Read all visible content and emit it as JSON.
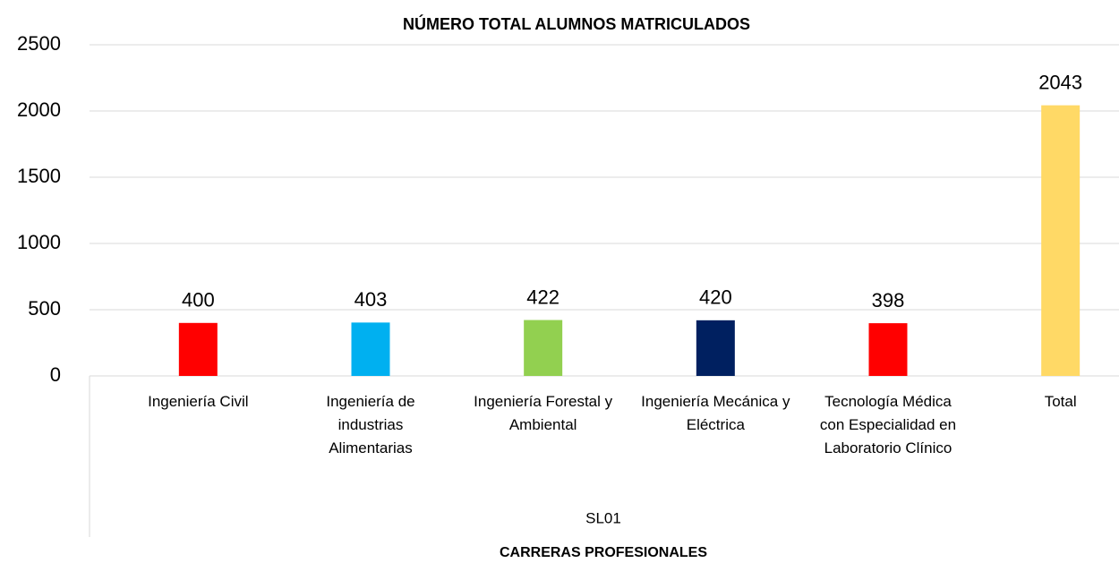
{
  "chart_data": {
    "type": "bar",
    "title": "NÚMERO TOTAL ALUMNOS MATRICULADOS",
    "categories": [
      "Ingeniería Civil",
      "Ingeniería de industrias Alimentarias",
      "Ingeniería Forestal y Ambiental",
      "Ingeniería Mecánica y Eléctrica",
      "Tecnología Médica con Especialidad en Laboratorio Clínico",
      "Total"
    ],
    "values": [
      400,
      403,
      422,
      420,
      398,
      2043
    ],
    "colors": [
      "#ff0000",
      "#00b0f0",
      "#92d050",
      "#002060",
      "#ff0000",
      "#ffd966"
    ],
    "group_label": "SL01",
    "x_label": "CARRERAS PROFESIONALES",
    "ylim": [
      0,
      2500
    ],
    "yticks": [
      0,
      500,
      1000,
      1500,
      2000,
      2500
    ],
    "grid": true
  }
}
